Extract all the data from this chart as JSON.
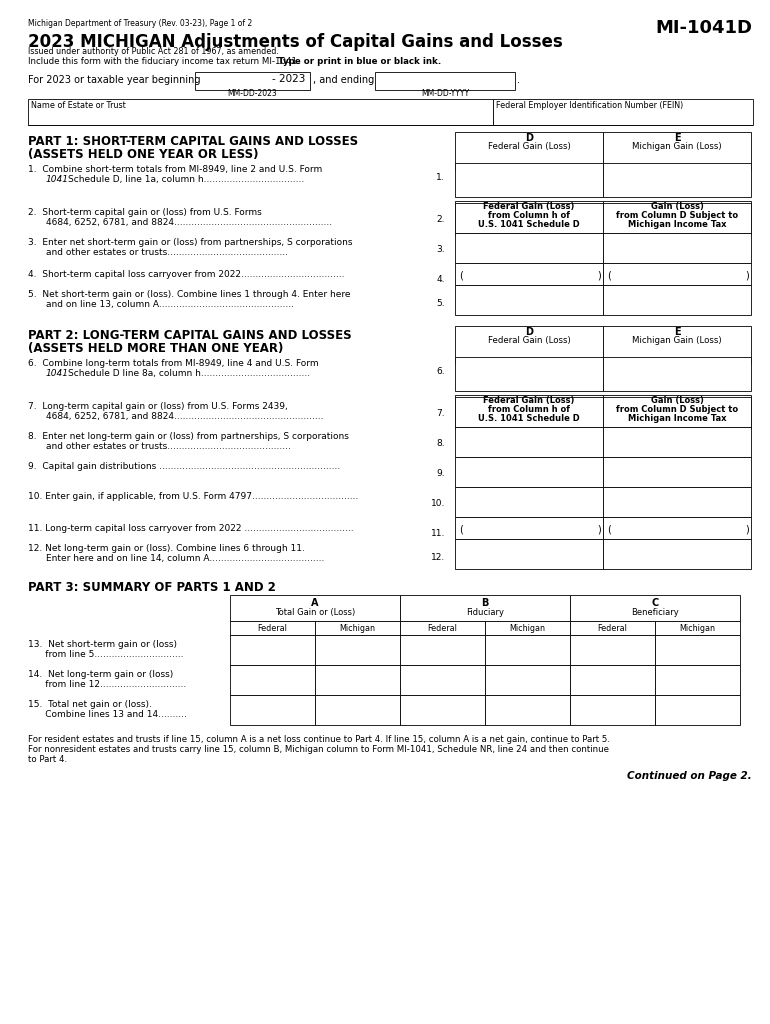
{
  "bg_color": "#ffffff",
  "title_small": "Michigan Department of Treasury (Rev. 03-23), Page 1 of 2",
  "form_id": "MI-1041D",
  "title_main": "2023 MICHIGAN Adjustments of Capital Gains and Losses",
  "title_sub1": "Issued under authority of Public Act 281 of 1967, as amended.",
  "title_sub2_normal": "Include this form with the fiduciary income tax return MI-1041. ",
  "title_sub2_bold": "Type or print in blue or black ink.",
  "year_label": "For 2023 or taxable year beginning",
  "year_value": "- 2023",
  "year_sub": "MM-DD-2023",
  "ending_label": ", and ending",
  "ending_sub": "MM-DD-YYYY",
  "name_label": "Name of Estate or Trust",
  "fein_label": "Federal Employer Identification Number (FEIN)",
  "part1_title1": "PART 1: SHORT-TERM CAPITAL GAINS AND LOSSES",
  "part1_title2": "(ASSETS HELD ONE YEAR OR LESS)",
  "col_d_label": "D",
  "col_d_sub": "Federal Gain (Loss)",
  "col_e_label": "E",
  "col_e_sub": "Michigan Gain (Loss)",
  "col_fed_gain_sub1": "Federal Gain (Loss)",
  "col_fed_gain_sub2": "from Column h of",
  "col_fed_gain_sub3": "U.S. 1041 Schedule D",
  "col_mi_gain_sub1": "Gain (Loss)",
  "col_mi_gain_sub2": "from Column D Subject to",
  "col_mi_gain_sub3": "Michigan Income Tax",
  "part2_title1": "PART 2: LONG-TERM CAPITAL GAINS AND LOSSES",
  "part2_title2": "(ASSETS HELD MORE THAN ONE YEAR)",
  "part3_title": "PART 3: SUMMARY OF PARTS 1 AND 2",
  "col_a_label": "A",
  "col_a_sub": "Total Gain or (Loss)",
  "col_b_label": "B",
  "col_b_sub": "Fiduciary",
  "col_c_label": "C",
  "col_c_sub": "Beneficiary",
  "footer1": "For resident estates and trusts if line 15, column A is a net loss continue to Part 4. If line 15, column A is a net gain, continue to Part 5.",
  "footer2": "For nonresident estates and trusts carry line 15, column B, Michigan column to Form MI-1041, Schedule NR, line 24 and then continue",
  "footer3": "to Part 4.",
  "footer4": "Continued on Page 2."
}
